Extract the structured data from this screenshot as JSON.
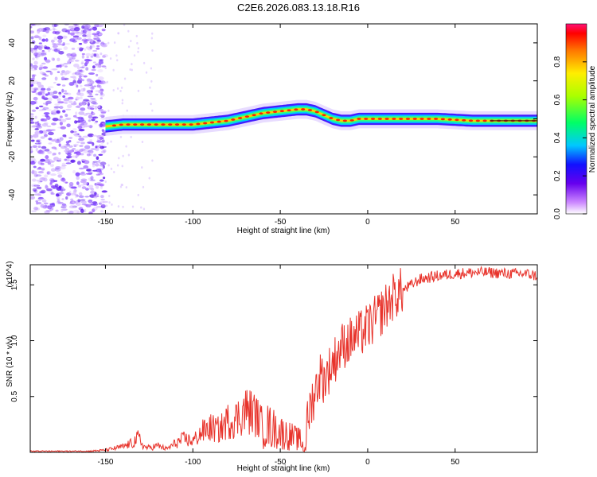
{
  "title": "C2E6.2026.083.13.18.R16",
  "chart_data": [
    {
      "type": "heatmap",
      "name": "spectrogram",
      "xlabel": "Height of straight line (km)",
      "ylabel": "Frequency (Hz)",
      "xlim": [
        -193,
        97
      ],
      "ylim": [
        -50,
        50
      ],
      "x_ticks": [
        -150,
        -100,
        -50,
        0,
        50
      ],
      "y_ticks": [
        -40,
        -20,
        0,
        20,
        40
      ],
      "ridge_x": [
        -150,
        -140,
        -130,
        -120,
        -110,
        -100,
        -90,
        -80,
        -70,
        -60,
        -50,
        -40,
        -35,
        -30,
        -25,
        -20,
        -15,
        -10,
        -5,
        0,
        10,
        20,
        40,
        60,
        80,
        95
      ],
      "ridge_freq": [
        -4,
        -3,
        -3,
        -3,
        -3,
        -3,
        -2,
        -1,
        1,
        3,
        4,
        5,
        5,
        4,
        2,
        0,
        -1,
        -1,
        0,
        0,
        0,
        0,
        0,
        -1,
        -1,
        -1
      ],
      "colorbar": {
        "label": "Normalized spectral amplitude",
        "range": [
          0,
          1
        ],
        "ticks": [
          "0.0",
          "0.2",
          "0.4",
          "0.6",
          "0.8"
        ]
      }
    },
    {
      "type": "line",
      "name": "snr",
      "xlabel": "Height of straight line (km)",
      "ylabel": "SNR (10 * v/v)",
      "y_multiplier": "(x10^4)",
      "xlim": [
        -193,
        97
      ],
      "ylim": [
        0,
        1.68
      ],
      "x_ticks": [
        -150,
        -100,
        -50,
        0,
        50
      ],
      "y_ticks": [
        0.5,
        1.0,
        1.5
      ],
      "y_tick_labels": [
        "0.5",
        "1.0",
        "1.5"
      ],
      "color": "#e8342c",
      "x": [
        -193,
        -160,
        -150,
        -140,
        -135,
        -131,
        -128,
        -125,
        -120,
        -115,
        -110,
        -105,
        -100,
        -95,
        -90,
        -85,
        -80,
        -75,
        -70,
        -65,
        -60,
        -55,
        -50,
        -45,
        -40,
        -36,
        -33,
        -30,
        -27,
        -25,
        -20,
        -15,
        -10,
        -5,
        0,
        5,
        10,
        15,
        20,
        25,
        30,
        40,
        50,
        60,
        70,
        80,
        90,
        97
      ],
      "y": [
        0.01,
        0.01,
        0.02,
        0.05,
        0.08,
        0.13,
        0.05,
        0.04,
        0.06,
        0.03,
        0.08,
        0.12,
        0.1,
        0.18,
        0.22,
        0.2,
        0.28,
        0.3,
        0.38,
        0.35,
        0.25,
        0.22,
        0.18,
        0.15,
        0.12,
        0.1,
        0.4,
        0.55,
        0.7,
        0.65,
        0.8,
        0.95,
        1.0,
        1.05,
        1.12,
        1.2,
        1.3,
        1.4,
        1.45,
        1.5,
        1.55,
        1.58,
        1.6,
        1.61,
        1.61,
        1.6,
        1.6,
        1.58
      ]
    }
  ]
}
